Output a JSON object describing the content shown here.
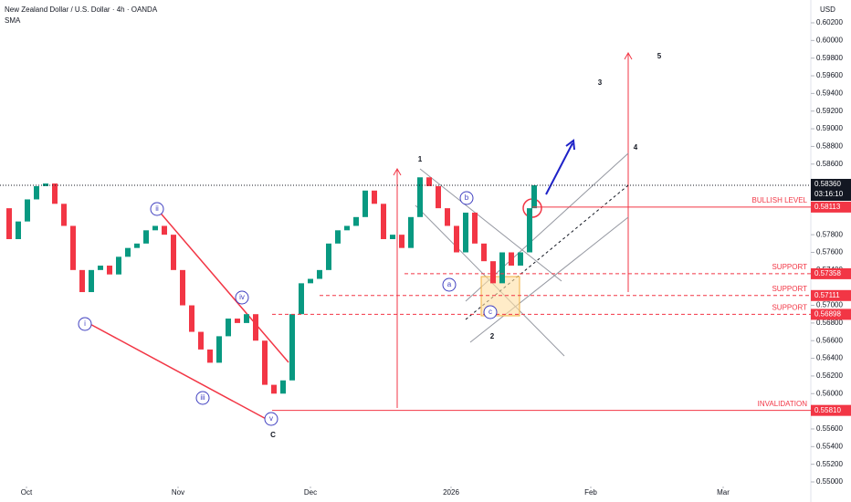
{
  "chart_data": {
    "type": "candlestick",
    "title": "New Zealand Dollar / U.S. Dollar · 4h · OANDA",
    "indicator": "SMA",
    "currency": "USD",
    "x": [
      0,
      1,
      2,
      3,
      4,
      5,
      6,
      7,
      8,
      9,
      10,
      11,
      12,
      13,
      14,
      15,
      16,
      17,
      18,
      19,
      20,
      21,
      22,
      23,
      24,
      25,
      26,
      27,
      28,
      29,
      30,
      31,
      32,
      33,
      34,
      35,
      36,
      37,
      38,
      39,
      40,
      41,
      42,
      43,
      44,
      45,
      46,
      47,
      48,
      49,
      50,
      51,
      52,
      53,
      54,
      55,
      56,
      57,
      58,
      58.5
    ],
    "values": [
      0.581,
      0.5775,
      0.5795,
      0.582,
      0.5835,
      0.5838,
      0.5815,
      0.579,
      0.574,
      0.5715,
      0.574,
      0.5745,
      0.5735,
      0.5755,
      0.5765,
      0.577,
      0.5785,
      0.579,
      0.578,
      0.574,
      0.57,
      0.567,
      0.565,
      0.5635,
      0.5665,
      0.5685,
      0.568,
      0.569,
      0.566,
      0.561,
      0.56,
      0.5615,
      0.569,
      0.5725,
      0.573,
      0.574,
      0.577,
      0.5785,
      0.579,
      0.58,
      0.583,
      0.5815,
      0.5775,
      0.578,
      0.5765,
      0.58,
      0.5845,
      0.5835,
      0.581,
      0.579,
      0.576,
      0.5805,
      0.577,
      0.575,
      0.5725,
      0.576,
      0.5745,
      0.576,
      0.581,
      0.5836
    ],
    "up_color": "#089981",
    "down_color": "#f23645",
    "xlim": [
      0,
      88.8
    ],
    "xticks": [
      {
        "value": 2.9,
        "label": "Oct"
      },
      {
        "value": 19.5,
        "label": "Nov"
      },
      {
        "value": 34,
        "label": "Dec"
      },
      {
        "value": 49.4,
        "label": "2026"
      },
      {
        "value": 64.7,
        "label": "Feb"
      },
      {
        "value": 79.2,
        "label": "Mar"
      }
    ],
    "ylim": [
      0.55,
      0.602
    ],
    "yticks": [
      {
        "value": 0.602,
        "label": "0.60200"
      },
      {
        "value": 0.6,
        "label": "0.60000"
      },
      {
        "value": 0.598,
        "label": "0.59800"
      },
      {
        "value": 0.596,
        "label": "0.59600"
      },
      {
        "value": 0.594,
        "label": "0.59400"
      },
      {
        "value": 0.592,
        "label": "0.59200"
      },
      {
        "value": 0.59,
        "label": "0.59000"
      },
      {
        "value": 0.588,
        "label": "0.58800"
      },
      {
        "value": 0.586,
        "label": "0.58600"
      },
      {
        "value": 0.578,
        "label": "0.57800"
      },
      {
        "value": 0.576,
        "label": "0.57600"
      },
      {
        "value": 0.574,
        "label": "0.57400"
      },
      {
        "value": 0.57,
        "label": "0.57000"
      },
      {
        "value": 0.568,
        "label": "0.56800"
      },
      {
        "value": 0.566,
        "label": "0.56600"
      },
      {
        "value": 0.564,
        "label": "0.56400"
      },
      {
        "value": 0.562,
        "label": "0.56200"
      },
      {
        "value": 0.56,
        "label": "0.56000"
      },
      {
        "value": 0.556,
        "label": "0.55600"
      },
      {
        "value": 0.554,
        "label": "0.55400"
      },
      {
        "value": 0.552,
        "label": "0.55200"
      },
      {
        "value": 0.55,
        "label": "0.55000"
      }
    ],
    "last_price": {
      "value": 0.5836,
      "label": "0.58360"
    },
    "countdown": "03:16:10",
    "levels": [
      {
        "name": "BULLISH LEVEL",
        "value": 0.58113,
        "value_label": "0.58113",
        "color": "#f23645"
      },
      {
        "name": "SUPPORT",
        "value": 0.57358,
        "value_label": "0.57358",
        "color": "#f23645"
      },
      {
        "name": "SUPPORT",
        "value": 0.57111,
        "value_label": "0.57111",
        "color": "#f23645"
      },
      {
        "name": "SUPPORT",
        "value": 0.56898,
        "value_label": "0.56898",
        "color": "#f23645"
      },
      {
        "name": "INVALIDATION",
        "value": 0.5581,
        "value_label": "0.55810",
        "color": "#f23645"
      }
    ],
    "circled_labels": [
      "i",
      "ii",
      "iii",
      "iv",
      "v",
      "a",
      "b",
      "c"
    ],
    "wave_labels": [
      "C",
      "1",
      "2",
      "3",
      "4",
      "5"
    ]
  }
}
